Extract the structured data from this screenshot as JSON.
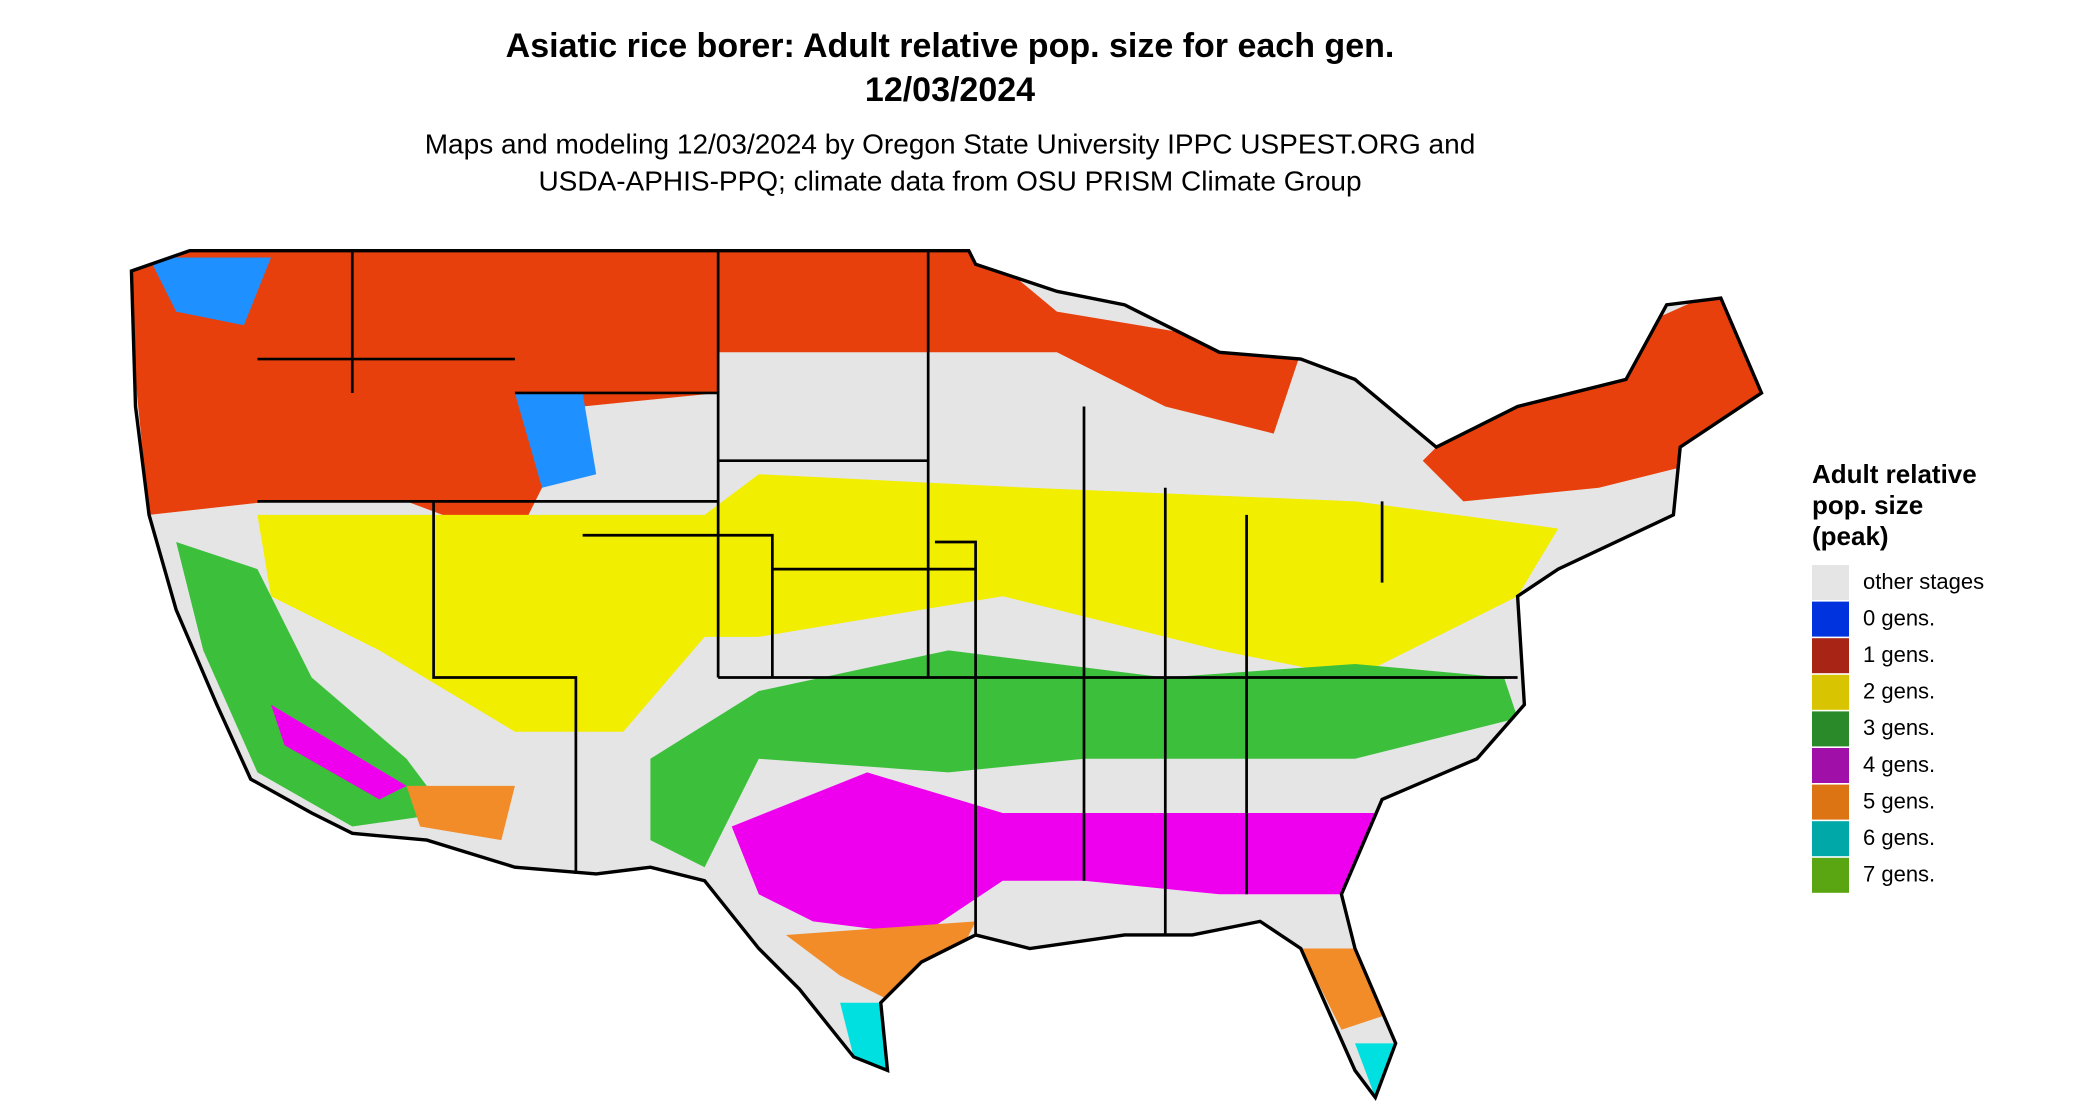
{
  "title": "Asiatic rice borer: Adult relative pop. size for each gen.",
  "date": "12/03/2024",
  "subtitle": [
    "Maps and modeling 12/03/2024 by Oregon State University IPPC USPEST.ORG and",
    "USDA-APHIS-PPQ; climate data from OSU PRISM Climate Group"
  ],
  "legend": {
    "title": [
      "Adult relative",
      "pop. size",
      "(peak)"
    ],
    "items": [
      {
        "label": "other stages",
        "color": "#e5e5e5"
      },
      {
        "label": "0 gens.",
        "color": "#0033dd"
      },
      {
        "label": "1 gens.",
        "color": "#a82414"
      },
      {
        "label": "2 gens.",
        "color": "#d8c400"
      },
      {
        "label": "3 gens.",
        "color": "#2a8a2a"
      },
      {
        "label": "4 gens.",
        "color": "#a010a8"
      },
      {
        "label": "5 gens.",
        "color": "#dc7414"
      },
      {
        "label": "6 gens.",
        "color": "#00a8a8"
      },
      {
        "label": "7 gens.",
        "color": "#5aa512"
      }
    ]
  }
}
